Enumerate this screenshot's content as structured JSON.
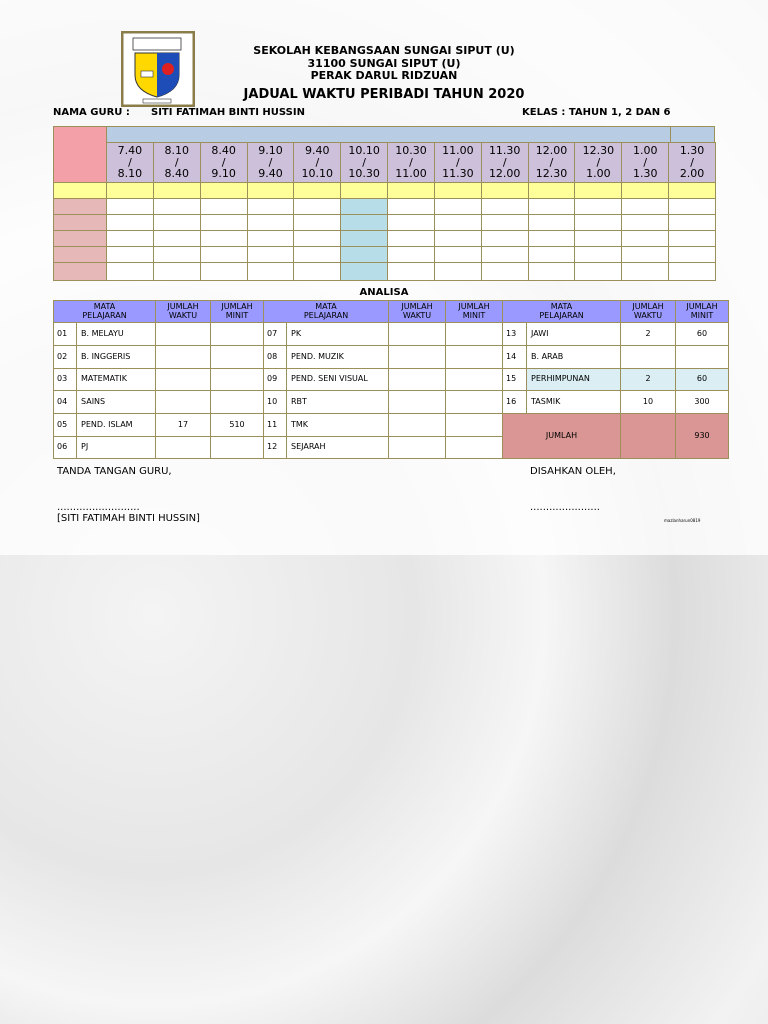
{
  "header": {
    "school": "SEKOLAH KEBANGSAAN SUNGAI SIPUT (U)",
    "address": "31100 SUNGAI SIPUT (U)",
    "state": "PERAK DARUL RIDZUAN",
    "title": "JADUAL WAKTU PERIBADI TAHUN 2020",
    "teacher_label": "NAMA GURU :",
    "teacher": "SITI FATIMAH BINTI HUSSIN",
    "class_info": "KELAS : TAHUN 1, 2 DAN 6"
  },
  "timetable": {
    "times": [
      "7.40\n/\n8.10",
      "8.10\n/\n8.40",
      "8.40\n/\n9.10",
      "9.10\n/\n9.40",
      "9.40\n/\n10.10",
      "10.10\n/\n10.30",
      "10.30\n/\n11.00",
      "11.00\n/\n11.30",
      "11.30\n/\n12.00",
      "12.00\n/\n12.30",
      "12.30\n/\n1.00",
      "1.00\n/\n1.30",
      "1.30\n/\n2.00"
    ]
  },
  "analysis": {
    "title": "ANALISA",
    "headers": [
      "MATA\nPELAJARAN",
      "JUMLAH\nWAKTU",
      "JUMLAH\nMINIT"
    ],
    "groups": [
      [
        {
          "no": "01",
          "subject": "B. MELAYU"
        },
        {
          "no": "02",
          "subject": "B. INGGERIS"
        },
        {
          "no": "03",
          "subject": "MATEMATIK"
        },
        {
          "no": "04",
          "subject": "SAINS"
        },
        {
          "no": "05",
          "subject": "PEND. ISLAM",
          "periods": 17,
          "minutes": 510
        },
        {
          "no": "06",
          "subject": "PJ"
        }
      ],
      [
        {
          "no": "07",
          "subject": "PK"
        },
        {
          "no": "08",
          "subject": "PEND. MUZIK"
        },
        {
          "no": "09",
          "subject": "PEND. SENI VISUAL"
        },
        {
          "no": "10",
          "subject": "RBT"
        },
        {
          "no": "11",
          "subject": "TMK"
        },
        {
          "no": "12",
          "subject": "SEJARAH"
        }
      ],
      [
        {
          "no": "13",
          "subject": "JAWI",
          "periods": 2,
          "minutes": 60
        },
        {
          "no": "14",
          "subject": "B. ARAB"
        },
        {
          "no": "15",
          "subject": "PERHIMPUNAN",
          "periods": 2,
          "minutes": 60
        },
        {
          "no": "16",
          "subject": "TASMIK",
          "periods": 10,
          "minutes": 300
        }
      ]
    ],
    "total": {
      "label": "JUMLAH",
      "minutes": 930
    }
  },
  "footer": {
    "teacher_sign": "TANDA TANGAN GURU,",
    "teacher_dots": "..........................",
    "teacher_name": "[SITI FATIMAH BINTI HUSSIN]",
    "approved": "DISAHKAN OLEH,",
    "approved_dots": "......................",
    "credit": "mazlanharun0819"
  }
}
